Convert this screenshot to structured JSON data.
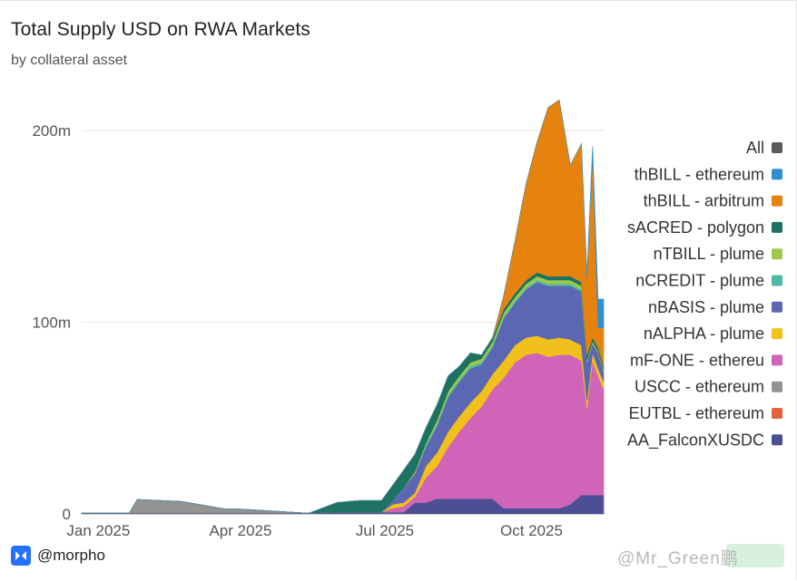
{
  "header": {
    "title": "Total Supply USD on RWA Markets",
    "subtitle": "by collateral asset"
  },
  "footer": {
    "handle": "@morpho",
    "watermark": "@Mr_Green鹏"
  },
  "colors": {
    "grid": "#e6e6e6",
    "axis_text": "#555555"
  },
  "chart_data": {
    "type": "area",
    "stacked": true,
    "title": "Total Supply USD on RWA Markets",
    "subtitle": "by collateral asset",
    "x_unit": "weeks since 2024-12-23",
    "xlim": [
      0,
      47
    ],
    "ylim": [
      0,
      215
    ],
    "y_unit": "millions USD",
    "y_ticks": [
      {
        "value": 0,
        "label": "0"
      },
      {
        "value": 100,
        "label": "100m"
      },
      {
        "value": 200,
        "label": "200m"
      }
    ],
    "x_ticks": [
      {
        "value": 1.5,
        "label": "Jan 2025"
      },
      {
        "value": 14.3,
        "label": "Apr 2025"
      },
      {
        "value": 27.3,
        "label": "Jul 2025"
      },
      {
        "value": 40.5,
        "label": "Oct 2025"
      }
    ],
    "grid": true,
    "legend_position": "right",
    "legend": [
      {
        "name": "All",
        "color": "#5b5b5b"
      },
      {
        "name": "thBILL - ethereum",
        "color": "#2f8fcf"
      },
      {
        "name": "thBILL - arbitrum",
        "color": "#e6830f"
      },
      {
        "name": "sACRED - polygon",
        "color": "#1e7263"
      },
      {
        "name": "nTBILL - plume",
        "color": "#9dc84a"
      },
      {
        "name": "nCREDIT - plume",
        "color": "#4ebaa6"
      },
      {
        "name": "nBASIS - plume",
        "color": "#5b67b3"
      },
      {
        "name": "nALPHA - plume",
        "color": "#f2c01a"
      },
      {
        "name": "mF-ONE - ethereu",
        "color": "#d064b8"
      },
      {
        "name": "USCC - ethereum",
        "color": "#939393"
      },
      {
        "name": "EUTBL - ethereum",
        "color": "#e8603c"
      },
      {
        "name": "AA_FalconXUSDC",
        "color": "#4a4f96"
      }
    ],
    "x": [
      0,
      4.3,
      5,
      9,
      13,
      14.3,
      20,
      20.5,
      23,
      25,
      26,
      27,
      28,
      29,
      30,
      31,
      32,
      33,
      34,
      35,
      36,
      37,
      38,
      39,
      40,
      41,
      42,
      43,
      44,
      45,
      45.5,
      46,
      46.5,
      47
    ],
    "series": [
      {
        "name": "AA_FalconXUSDC",
        "color": "#4a4f96",
        "values": [
          0.5,
          0.5,
          0.5,
          0.5,
          0.5,
          0.5,
          0.5,
          0.5,
          1,
          1,
          1,
          1,
          1,
          1,
          6,
          6,
          8,
          8,
          8,
          8,
          8,
          8,
          3,
          3,
          3,
          3,
          3,
          3,
          5,
          10,
          10,
          10,
          10,
          10
        ]
      },
      {
        "name": "EUTBL - ethereum",
        "color": "#e8603c",
        "values": [
          0,
          0,
          0,
          0,
          0,
          0,
          0,
          0,
          0,
          0,
          0,
          0,
          0,
          0,
          0,
          0,
          0,
          0,
          0,
          0,
          0,
          0,
          0,
          0,
          0,
          0,
          0,
          0,
          0,
          0,
          0,
          0,
          0,
          0
        ]
      },
      {
        "name": "USCC - ethereum",
        "color": "#939393",
        "values": [
          0,
          0,
          7,
          6,
          2,
          2,
          0,
          0,
          0,
          0,
          0,
          0,
          0,
          0,
          0,
          0,
          0,
          0,
          0,
          0,
          0,
          0,
          0,
          0,
          0,
          0,
          0,
          0,
          0,
          0,
          0,
          0,
          0,
          0
        ]
      },
      {
        "name": "mF-ONE - ethereu",
        "color": "#d064b8",
        "values": [
          0,
          0,
          0,
          0,
          0,
          0,
          0,
          0,
          0,
          0,
          0,
          0,
          2,
          3,
          3,
          13,
          17,
          27,
          35,
          42,
          48,
          57,
          68,
          76,
          80,
          81,
          79,
          80,
          78,
          70,
          45,
          70,
          62,
          55
        ]
      },
      {
        "name": "nALPHA - plume",
        "color": "#f2c01a",
        "values": [
          0,
          0,
          0,
          0,
          0,
          0,
          0,
          0,
          0,
          0,
          0,
          0,
          2,
          2,
          2,
          6,
          7,
          8,
          8,
          8,
          8,
          8,
          9,
          9,
          9,
          9,
          9,
          9,
          8,
          8,
          4,
          4,
          4,
          4
        ]
      },
      {
        "name": "nBASIS - plume",
        "color": "#5b67b3",
        "values": [
          0,
          0,
          0,
          0,
          0,
          0,
          0,
          0,
          0,
          0,
          0,
          0,
          2,
          8,
          10,
          10,
          14,
          18,
          18,
          18,
          14,
          14,
          22,
          22,
          25,
          28,
          28,
          27,
          28,
          28,
          20,
          5,
          8,
          5
        ]
      },
      {
        "name": "nCREDIT - plume",
        "color": "#4ebaa6",
        "values": [
          0,
          0,
          0,
          0,
          0,
          0,
          0,
          0,
          0,
          0,
          0,
          0,
          0,
          0,
          0,
          1,
          1,
          1,
          1,
          1,
          1,
          1,
          1,
          1,
          1,
          1,
          1,
          1,
          1,
          1,
          0,
          0,
          0,
          0
        ]
      },
      {
        "name": "nTBILL - plume",
        "color": "#9dc84a",
        "values": [
          0,
          0,
          0,
          0,
          0,
          0,
          0,
          0,
          0,
          0,
          0,
          0,
          0,
          0,
          1,
          1,
          2,
          2,
          2,
          2,
          2,
          2,
          2,
          2,
          2,
          2,
          2,
          2,
          2,
          2,
          1,
          1,
          1,
          1
        ]
      },
      {
        "name": "sACRED - polygon",
        "color": "#1e7263",
        "values": [
          0,
          0,
          0,
          0,
          0,
          0,
          0,
          0,
          5,
          6,
          6,
          6,
          8,
          9,
          9,
          8,
          8,
          8,
          5,
          5,
          2,
          2,
          2,
          2,
          2,
          2,
          2,
          2,
          2,
          2,
          3,
          2,
          2,
          2
        ]
      },
      {
        "name": "thBILL - arbitrum",
        "color": "#e6830f",
        "values": [
          0,
          0,
          0,
          0,
          0,
          0,
          0,
          0,
          0,
          0,
          0,
          0,
          0,
          0,
          0,
          0,
          0,
          0,
          0,
          0,
          0,
          0,
          7,
          27,
          50,
          68,
          88,
          92,
          58,
          72,
          40,
          95,
          10,
          20
        ]
      },
      {
        "name": "thBILL - ethereum",
        "color": "#2f8fcf",
        "values": [
          0,
          0,
          0,
          0,
          0,
          0,
          0,
          0,
          0,
          0,
          0,
          0,
          0,
          0,
          0,
          0,
          0,
          0,
          0,
          0,
          0,
          0,
          0,
          0,
          0,
          0,
          0,
          0,
          0,
          0,
          2,
          5,
          15,
          15
        ]
      }
    ]
  }
}
